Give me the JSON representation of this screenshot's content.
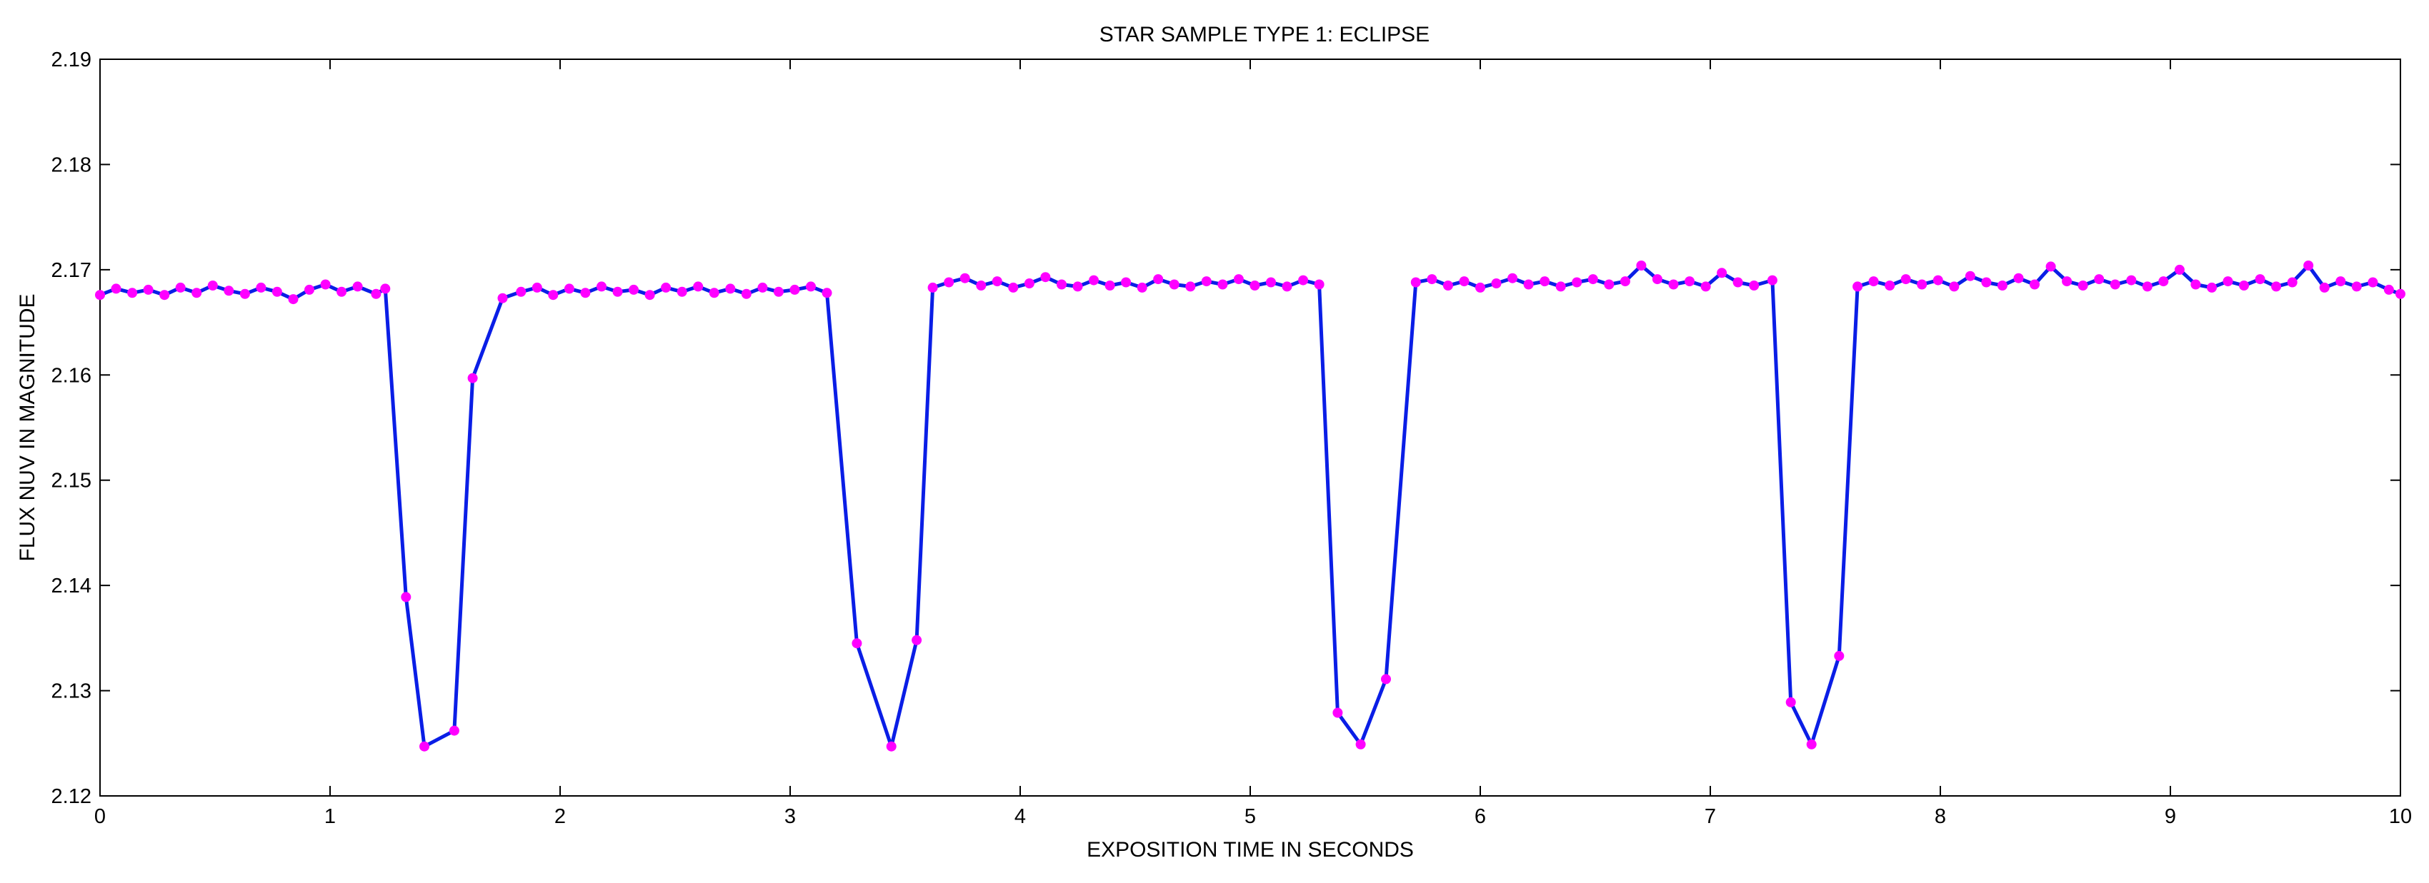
{
  "chart_data": {
    "type": "line",
    "title": "STAR SAMPLE TYPE 1: ECLIPSE",
    "xlabel": "EXPOSITION TIME IN SECONDS",
    "ylabel": "FLUX NUV IN MAGNITUDE",
    "xlim": [
      0,
      10
    ],
    "ylim": [
      2.12,
      2.19
    ],
    "x_ticks": [
      0,
      1,
      2,
      3,
      4,
      5,
      6,
      7,
      8,
      9,
      10
    ],
    "y_ticks": [
      2.12,
      2.13,
      2.14,
      2.15,
      2.16,
      2.17,
      2.18,
      2.19
    ],
    "grid": false,
    "line_color": "#0a1ee6",
    "marker_color": "#ff00ff",
    "series": [
      {
        "x": [
          0.0,
          0.07,
          0.14,
          0.21,
          0.28,
          0.35,
          0.42,
          0.49,
          0.56,
          0.63,
          0.7,
          0.77,
          0.84,
          0.91,
          0.98,
          1.05,
          1.12,
          1.2,
          1.24,
          1.33,
          1.41,
          1.54,
          1.62,
          1.75,
          1.83,
          1.9,
          1.97,
          2.04,
          2.11,
          2.18,
          2.25,
          2.32,
          2.39,
          2.46,
          2.53,
          2.6,
          2.67,
          2.74,
          2.81,
          2.88,
          2.95,
          3.02,
          3.09,
          3.16,
          3.29,
          3.44,
          3.55,
          3.62,
          3.69,
          3.76,
          3.83,
          3.9,
          3.97,
          4.04,
          4.11,
          4.18,
          4.25,
          4.32,
          4.39,
          4.46,
          4.53,
          4.6,
          4.67,
          4.74,
          4.81,
          4.88,
          4.95,
          5.02,
          5.09,
          5.16,
          5.23,
          5.3,
          5.38,
          5.48,
          5.59,
          5.72,
          5.79,
          5.86,
          5.93,
          6.0,
          6.07,
          6.14,
          6.21,
          6.28,
          6.35,
          6.42,
          6.49,
          6.56,
          6.63,
          6.7,
          6.77,
          6.84,
          6.91,
          6.98,
          7.05,
          7.12,
          7.19,
          7.27,
          7.35,
          7.44,
          7.56,
          7.64,
          7.71,
          7.78,
          7.85,
          7.92,
          7.99,
          8.06,
          8.13,
          8.2,
          8.27,
          8.34,
          8.41,
          8.48,
          8.55,
          8.62,
          8.69,
          8.76,
          8.83,
          8.9,
          8.97,
          9.04,
          9.11,
          9.18,
          9.25,
          9.32,
          9.39,
          9.46,
          9.53,
          9.6,
          9.67,
          9.74,
          9.81,
          9.88,
          9.95,
          10.0
        ],
        "y": [
          2.1676,
          2.1682,
          2.1678,
          2.1681,
          2.1676,
          2.1683,
          2.1678,
          2.1685,
          2.168,
          2.1677,
          2.1683,
          2.1679,
          2.1672,
          2.1681,
          2.1686,
          2.1679,
          2.1684,
          2.1677,
          2.1682,
          2.1389,
          2.1247,
          2.1262,
          2.1597,
          2.1673,
          2.1679,
          2.1683,
          2.1676,
          2.1682,
          2.1678,
          2.1684,
          2.1679,
          2.1681,
          2.1676,
          2.1683,
          2.1679,
          2.1684,
          2.1678,
          2.1682,
          2.1677,
          2.1683,
          2.1679,
          2.1681,
          2.1684,
          2.1678,
          2.1345,
          2.1247,
          2.1348,
          2.1683,
          2.1688,
          2.1692,
          2.1685,
          2.1689,
          2.1683,
          2.1687,
          2.1693,
          2.1686,
          2.1684,
          2.169,
          2.1685,
          2.1688,
          2.1683,
          2.1691,
          2.1686,
          2.1684,
          2.1689,
          2.1686,
          2.1691,
          2.1685,
          2.1688,
          2.1684,
          2.169,
          2.1686,
          2.1279,
          2.1249,
          2.1311,
          2.1688,
          2.1691,
          2.1685,
          2.1689,
          2.1683,
          2.1687,
          2.1692,
          2.1686,
          2.1689,
          2.1684,
          2.1688,
          2.1691,
          2.1686,
          2.1689,
          2.1704,
          2.1691,
          2.1686,
          2.1689,
          2.1684,
          2.1697,
          2.1688,
          2.1685,
          2.169,
          2.1289,
          2.1249,
          2.1333,
          2.1684,
          2.1689,
          2.1685,
          2.1691,
          2.1686,
          2.169,
          2.1684,
          2.1694,
          2.1688,
          2.1685,
          2.1692,
          2.1686,
          2.1703,
          2.1689,
          2.1685,
          2.1691,
          2.1686,
          2.169,
          2.1684,
          2.1689,
          2.17,
          2.1686,
          2.1683,
          2.1689,
          2.1685,
          2.1691,
          2.1684,
          2.1688,
          2.1704,
          2.1683,
          2.1689,
          2.1684,
          2.1688,
          2.1681,
          2.1677
        ]
      }
    ]
  }
}
